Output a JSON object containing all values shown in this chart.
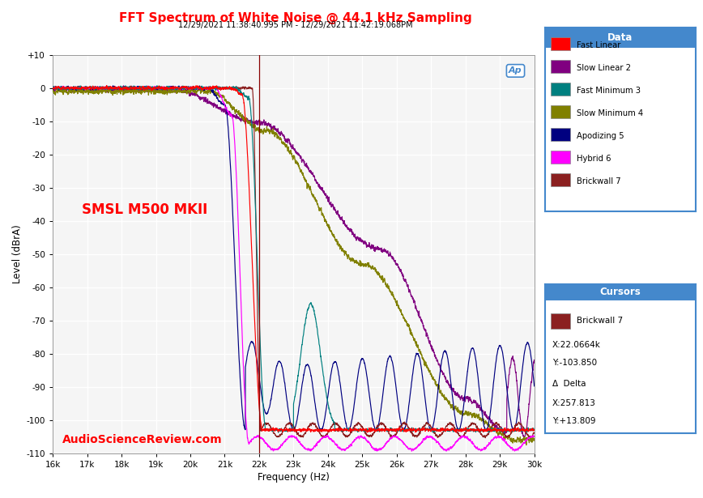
{
  "title": "FFT Spectrum of White Noise @ 44.1 kHz Sampling",
  "subtitle": "12/29/2021 11:38:40.995 PM - 12/29/2021 11:42:19.068PM",
  "xlabel": "Frequency (Hz)",
  "ylabel": "Level (dBrA)",
  "watermark": "SMSL M500 MKII",
  "asr_watermark": "AudioScienceReview.com",
  "xlim": [
    16000,
    30000
  ],
  "ylim": [
    -110,
    10
  ],
  "yticks": [
    10,
    0,
    -10,
    -20,
    -30,
    -40,
    -50,
    -60,
    -70,
    -80,
    -90,
    -100,
    -110
  ],
  "ytick_labels": [
    "+10",
    "0",
    "-10",
    "-20",
    "-30",
    "-40",
    "-50",
    "-60",
    "-70",
    "-80",
    "-90",
    "-100",
    "-110"
  ],
  "xticks": [
    16000,
    17000,
    18000,
    19000,
    20000,
    21000,
    22000,
    23000,
    24000,
    25000,
    26000,
    27000,
    28000,
    29000,
    30000
  ],
  "xtick_labels": [
    "16k",
    "17k",
    "18k",
    "19k",
    "20k",
    "21k",
    "22k",
    "23k",
    "24k",
    "25k",
    "26k",
    "27k",
    "28k",
    "29k",
    "30k"
  ],
  "vline_x": 22000,
  "title_color": "#FF0000",
  "subtitle_color": "#000000",
  "watermark_color": "#FF0000",
  "asr_color": "#FF0000",
  "bg_color": "#FFFFFF",
  "plot_bg_color": "#F5F5F5",
  "grid_color": "#FFFFFF",
  "legend_entries": [
    {
      "label": "Fast Linear",
      "color": "#FF0000"
    },
    {
      "label": "Slow Linear 2",
      "color": "#800080"
    },
    {
      "label": "Fast Minimum 3",
      "color": "#008080"
    },
    {
      "label": "Slow Minimum 4",
      "color": "#808000"
    },
    {
      "label": "Apodizing 5",
      "color": "#000080"
    },
    {
      "label": "Hybrid 6",
      "color": "#FF00FF"
    },
    {
      "label": "Brickwall 7",
      "color": "#8B2020"
    }
  ],
  "cursor_label": "Brickwall 7",
  "cursor_color": "#8B2020",
  "cursor_x": "X:22.0664k",
  "cursor_y": "Y:-103.850",
  "delta_label": "Δ  Delta",
  "delta_x": "X:257.813",
  "delta_y": "Y:+13.809",
  "ap_logo_color": "#4488CC",
  "panel_header_color": "#4488CC"
}
